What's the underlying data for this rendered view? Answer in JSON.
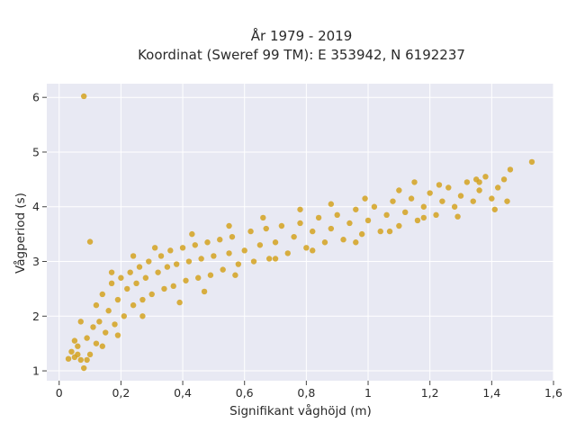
{
  "chart_data": {
    "type": "scatter",
    "title_lines": [
      "År 1979 - 2019",
      "Koordinat (Sweref 99 TM): E 353942, N 6192237"
    ],
    "xlabel": "Signifikant våghöjd (m)",
    "ylabel": "Vågperiod (s)",
    "xlim": [
      -0.04,
      1.6
    ],
    "ylim": [
      0.82,
      6.25
    ],
    "x_ticks": [
      0,
      0.2,
      0.4,
      0.6,
      0.8,
      1,
      1.2,
      1.4,
      1.6
    ],
    "x_tick_labels": [
      "0",
      "0,2",
      "0,4",
      "0,6",
      "0,8",
      "1",
      "1,2",
      "1,4",
      "1,6"
    ],
    "y_ticks": [
      1,
      2,
      3,
      4,
      5,
      6
    ],
    "y_tick_labels": [
      "1",
      "2",
      "3",
      "4",
      "5",
      "6"
    ],
    "grid": true,
    "legend": "none",
    "marker_color": "#d4a21e",
    "plot_background": "#e8e9f3",
    "series": [
      {
        "values_xy": [
          [
            0.08,
            6.02
          ],
          [
            0.1,
            3.36
          ],
          [
            0.03,
            1.22
          ],
          [
            0.04,
            1.35
          ],
          [
            0.05,
            1.25
          ],
          [
            0.06,
            1.45
          ],
          [
            0.07,
            1.2
          ],
          [
            0.08,
            1.05
          ],
          [
            0.09,
            1.6
          ],
          [
            0.1,
            1.3
          ],
          [
            0.11,
            1.8
          ],
          [
            0.12,
            1.5
          ],
          [
            0.12,
            2.2
          ],
          [
            0.13,
            1.9
          ],
          [
            0.14,
            2.4
          ],
          [
            0.15,
            1.7
          ],
          [
            0.16,
            2.1
          ],
          [
            0.17,
            2.6
          ],
          [
            0.18,
            1.85
          ],
          [
            0.19,
            2.3
          ],
          [
            0.2,
            2.7
          ],
          [
            0.21,
            2.0
          ],
          [
            0.22,
            2.5
          ],
          [
            0.23,
            2.8
          ],
          [
            0.24,
            2.2
          ],
          [
            0.25,
            2.6
          ],
          [
            0.26,
            2.9
          ],
          [
            0.27,
            2.3
          ],
          [
            0.28,
            2.7
          ],
          [
            0.29,
            3.0
          ],
          [
            0.3,
            2.4
          ],
          [
            0.32,
            2.8
          ],
          [
            0.33,
            3.1
          ],
          [
            0.34,
            2.5
          ],
          [
            0.35,
            2.9
          ],
          [
            0.36,
            3.2
          ],
          [
            0.37,
            2.55
          ],
          [
            0.38,
            2.95
          ],
          [
            0.4,
            3.25
          ],
          [
            0.41,
            2.65
          ],
          [
            0.42,
            3.0
          ],
          [
            0.44,
            3.3
          ],
          [
            0.45,
            2.7
          ],
          [
            0.46,
            3.05
          ],
          [
            0.48,
            3.35
          ],
          [
            0.49,
            2.75
          ],
          [
            0.5,
            3.1
          ],
          [
            0.52,
            3.4
          ],
          [
            0.53,
            2.85
          ],
          [
            0.55,
            3.15
          ],
          [
            0.56,
            3.45
          ],
          [
            0.58,
            2.95
          ],
          [
            0.6,
            3.2
          ],
          [
            0.62,
            3.55
          ],
          [
            0.63,
            3.0
          ],
          [
            0.65,
            3.3
          ],
          [
            0.67,
            3.6
          ],
          [
            0.68,
            3.05
          ],
          [
            0.7,
            3.35
          ],
          [
            0.72,
            3.65
          ],
          [
            0.74,
            3.15
          ],
          [
            0.76,
            3.45
          ],
          [
            0.78,
            3.7
          ],
          [
            0.8,
            3.25
          ],
          [
            0.82,
            3.55
          ],
          [
            0.84,
            3.8
          ],
          [
            0.86,
            3.35
          ],
          [
            0.88,
            3.6
          ],
          [
            0.9,
            3.85
          ],
          [
            0.92,
            3.4
          ],
          [
            0.94,
            3.7
          ],
          [
            0.96,
            3.95
          ],
          [
            0.98,
            3.5
          ],
          [
            1.0,
            3.75
          ],
          [
            1.02,
            4.0
          ],
          [
            1.04,
            3.55
          ],
          [
            1.06,
            3.85
          ],
          [
            1.08,
            4.1
          ],
          [
            1.1,
            3.65
          ],
          [
            1.12,
            3.9
          ],
          [
            1.14,
            4.15
          ],
          [
            1.16,
            3.75
          ],
          [
            1.18,
            4.0
          ],
          [
            1.2,
            4.25
          ],
          [
            1.22,
            3.85
          ],
          [
            1.24,
            4.1
          ],
          [
            1.26,
            4.35
          ],
          [
            1.28,
            4.0
          ],
          [
            1.3,
            4.2
          ],
          [
            1.32,
            4.45
          ],
          [
            1.34,
            4.1
          ],
          [
            1.36,
            4.3
          ],
          [
            1.38,
            4.55
          ],
          [
            1.4,
            4.15
          ],
          [
            1.42,
            4.35
          ],
          [
            1.44,
            4.5
          ],
          [
            1.45,
            4.1
          ],
          [
            1.46,
            4.68
          ],
          [
            1.53,
            4.82
          ],
          [
            1.41,
            3.95
          ],
          [
            1.35,
            4.5
          ],
          [
            1.29,
            3.82
          ],
          [
            1.18,
            3.8
          ],
          [
            1.15,
            4.45
          ],
          [
            1.07,
            3.55
          ],
          [
            0.96,
            3.35
          ],
          [
            0.82,
            3.2
          ],
          [
            0.7,
            3.05
          ],
          [
            0.57,
            2.75
          ],
          [
            0.47,
            2.45
          ],
          [
            0.39,
            2.25
          ],
          [
            0.27,
            2.0
          ],
          [
            0.19,
            1.65
          ],
          [
            0.14,
            1.45
          ],
          [
            0.09,
            1.2
          ],
          [
            0.17,
            2.8
          ],
          [
            0.24,
            3.1
          ],
          [
            0.31,
            3.25
          ],
          [
            0.43,
            3.5
          ],
          [
            0.55,
            3.65
          ],
          [
            0.66,
            3.8
          ],
          [
            0.78,
            3.95
          ],
          [
            0.88,
            4.05
          ],
          [
            0.99,
            4.15
          ],
          [
            1.1,
            4.3
          ],
          [
            1.23,
            4.4
          ],
          [
            1.36,
            4.45
          ],
          [
            0.05,
            1.55
          ],
          [
            0.06,
            1.3
          ],
          [
            0.07,
            1.9
          ]
        ]
      }
    ]
  }
}
